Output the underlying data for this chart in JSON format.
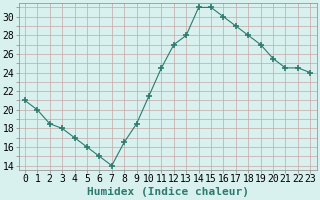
{
  "x": [
    0,
    1,
    2,
    3,
    4,
    5,
    6,
    7,
    8,
    9,
    10,
    11,
    12,
    13,
    14,
    15,
    16,
    17,
    18,
    19,
    20,
    21,
    22,
    23
  ],
  "y": [
    21,
    20,
    18.5,
    18,
    17,
    16,
    15,
    14,
    16.5,
    18.5,
    21.5,
    24.5,
    27,
    28,
    31,
    31,
    30,
    29,
    28,
    27,
    25.5,
    24.5,
    24.5,
    24
  ],
  "line_color": "#2d7a6e",
  "marker": "+",
  "marker_size": 4,
  "marker_lw": 1.2,
  "bg_color": "#d8f0ee",
  "grid_color": "#c8a8a8",
  "xlabel": "Humidex (Indice chaleur)",
  "xlabel_fontsize": 8,
  "xlabel_color": "#2d7a6e",
  "ylabel_ticks": [
    14,
    16,
    18,
    20,
    22,
    24,
    26,
    28,
    30
  ],
  "ylim": [
    13.5,
    31.5
  ],
  "xlim": [
    -0.5,
    23.5
  ],
  "tick_fontsize": 7
}
